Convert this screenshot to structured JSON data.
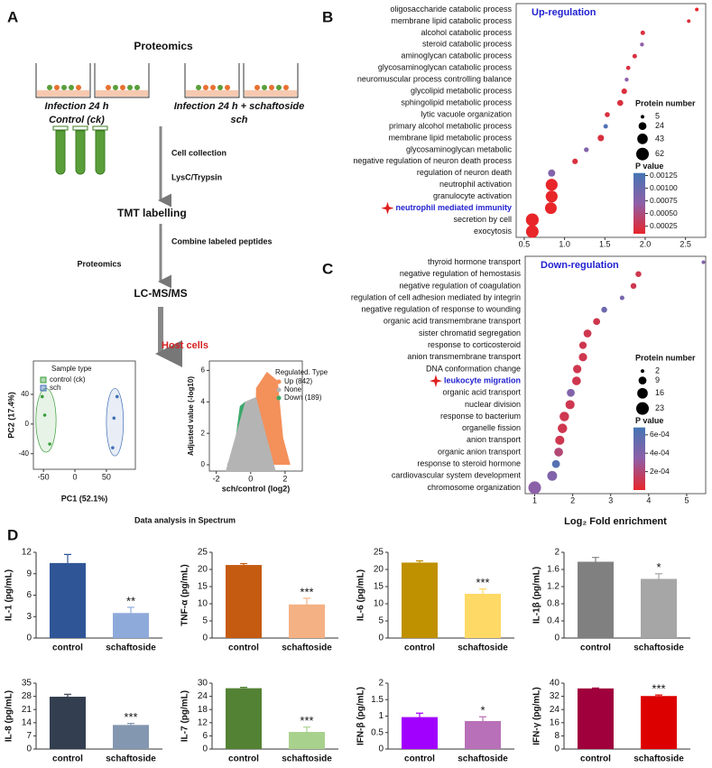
{
  "panel_labels": [
    "A",
    "B",
    "C",
    "D"
  ],
  "diagram": {
    "heading": "Proteomics",
    "groups": [
      {
        "line1": "Infection 24  h",
        "line2": "Control (ck)"
      },
      {
        "line1": "Infection 24  h + schaftoside",
        "line2": "sch"
      }
    ],
    "steps": [
      "Cell collection",
      "LysC/Trypsin",
      "TMT labelling",
      "Combine labeled peptides",
      "Proteomics",
      "LC-MS/MS",
      "Host cells",
      "Data analysis in Spectrum"
    ]
  },
  "chart_data": [
    {
      "type": "scatter",
      "xlabel": "PC1 (52.1%)",
      "ylabel": "PC2 (17.4%)",
      "legend_title": "Sample type",
      "series": [
        {
          "name": "control (ck)",
          "color": "#3a9d3a",
          "x": [
            -52,
            -48,
            -40
          ],
          "values": [
            37,
            12,
            -27
          ]
        },
        {
          "name": "sch",
          "color": "#3f6fb5",
          "x": [
            67,
            62,
            60
          ],
          "values": [
            37,
            8,
            -32
          ]
        }
      ],
      "xlim": [
        -66,
        96
      ],
      "ylim": [
        -61,
        85
      ],
      "xticks": [
        -50,
        0,
        50
      ],
      "yticks": [
        -40,
        0,
        40
      ]
    },
    {
      "type": "volcano",
      "xlabel": "sch/control (log2)",
      "ylabel": "Adjusted value (-log10)",
      "legend_title": "Regulated. Type",
      "series": [
        {
          "name": "Up (842)",
          "color": "#f4905a"
        },
        {
          "name": "None",
          "color": "#b4b4b4"
        },
        {
          "name": "Down (189)",
          "color": "#3aa86b"
        }
      ],
      "xlim": [
        -2.4,
        3.0
      ],
      "ylim": [
        -0.4,
        6.6
      ],
      "xticks": [
        -2,
        0,
        2
      ],
      "yticks": [
        0,
        2,
        4,
        6
      ]
    },
    {
      "type": "dot",
      "title": "Up-regulation",
      "highlight": 17,
      "categories": [
        "oligosaccharide catabolic process",
        "membrane lipid catabolic process",
        "alcohol catabolic process",
        "steroid catabolic process",
        "aminoglycan catabolic process",
        "glycosaminoglycan catabolic process",
        "neuromuscular process controlling balance",
        "glycolipid metabolic process",
        "sphingolipid metabolic process",
        "lytic vacuole organization",
        "primary alcohol metabolic process",
        "membrane lipid metabolic process",
        "glycosaminoglycan metabolic",
        "negative regulation of neuron death process",
        "regulation of neuron death",
        "neutrophil activation",
        "granulocyte activation",
        "neutrophil mediated immunity",
        "secretion by cell",
        "exocytosis"
      ],
      "values": [
        2.64,
        2.54,
        1.97,
        1.96,
        1.87,
        1.79,
        1.77,
        1.74,
        1.69,
        1.53,
        1.51,
        1.45,
        1.27,
        1.13,
        0.84,
        0.84,
        0.84,
        0.83,
        0.6,
        0.6
      ],
      "sizes": [
        5,
        5,
        8,
        6,
        8,
        7,
        6,
        12,
        14,
        10,
        8,
        16,
        9,
        12,
        20,
        55,
        55,
        54,
        64,
        62
      ],
      "pvalues": [
        0.0001,
        0.0002,
        0.0002,
        0.0007,
        0.0002,
        0.0002,
        0.0007,
        0.0002,
        0.0002,
        0.0002,
        0.0012,
        0.0002,
        0.0008,
        0.0002,
        0.0008,
        0.0001,
        0.0001,
        0.0001,
        0.0001,
        0.0001
      ],
      "xlim": [
        0.4,
        2.75
      ],
      "xticks": [
        0.5,
        {
          "value": 1,
          "label": "1.0"
        },
        1.5,
        {
          "value": 2,
          "label": "2.0"
        },
        2.5
      ],
      "size_title": "Protein number",
      "size_ticks": [
        5,
        24,
        43,
        62
      ],
      "color_title": "P value",
      "clim": [
        0.0001,
        0.0013
      ],
      "cticks": [
        0.00125,
        {
          "value": 0.001,
          "label": "0.00100"
        },
        0.00075,
        {
          "value": 0.0005,
          "label": "0.00050"
        },
        0.00025
      ]
    },
    {
      "type": "dot",
      "title": "Down-regulation",
      "highlight": 10,
      "xlabel": "Log₂ Fold enrichment",
      "categories": [
        "thyroid hormone transport",
        "negative regulation of hemostasis",
        "negative regulation of coagulation",
        "regulation of cell adhesion mediated by integrin",
        "negative regulation of response to wounding",
        "organic acid transmembrane transport",
        "sister chromatid segregation",
        "response to corticosteroid",
        "anion transmembrane transport",
        "DNA conformation change",
        "leukocyte migration",
        "organic acid transport",
        "nuclear division",
        "response to bacterium",
        "organelle fission",
        "anion transport",
        "organic anion transport",
        "response to steroid hormone",
        "cardiovascular system development",
        "chromosome organization"
      ],
      "values": [
        5.44,
        3.73,
        3.6,
        3.3,
        2.83,
        2.63,
        2.39,
        2.27,
        2.27,
        2.12,
        2.1,
        1.95,
        1.93,
        1.78,
        1.73,
        1.66,
        1.63,
        1.56,
        1.46,
        1.0
      ],
      "sizes": [
        2,
        5,
        5,
        3,
        5,
        7,
        9,
        8,
        10,
        10,
        11,
        9,
        12,
        13,
        13,
        12,
        11,
        9,
        14,
        23
      ],
      "pvalues": [
        0.0004,
        0.0001,
        0.0001,
        0.00045,
        0.0005,
        0.0001,
        0.0001,
        0.0001,
        0.0001,
        0.0001,
        0.0001,
        0.0004,
        0.0001,
        0.0001,
        0.0001,
        0.0001,
        0.0002,
        0.0006,
        0.0004,
        0.00035
      ],
      "xlim": [
        0.75,
        5.5
      ],
      "xticks": [
        1,
        2,
        3,
        4,
        5
      ],
      "size_title": "Protein number",
      "size_ticks": [
        2,
        9,
        16,
        23
      ],
      "color_title": "P value",
      "clim": [
        0,
        0.00068
      ],
      "cticks": [
        {
          "value": 0.0006,
          "label": "6e-04"
        },
        {
          "value": 0.0004,
          "label": "4e-04"
        },
        {
          "value": 0.0002,
          "label": "2e-04"
        }
      ]
    },
    {
      "type": "bar",
      "ylabel": "IL-1 (pg/mL)",
      "categories": [
        "control",
        "schaftoside"
      ],
      "values": [
        10.5,
        3.5
      ],
      "errors": [
        1.2,
        0.8
      ],
      "colors": [
        "#2f5597",
        "#8eaadb"
      ],
      "significance": "**",
      "ylim": [
        0,
        12
      ],
      "yticks": [
        0,
        3,
        6,
        9,
        12
      ]
    },
    {
      "type": "bar",
      "ylabel": "TNF-α (pg/mL)",
      "categories": [
        "control",
        "schaftoside"
      ],
      "values": [
        21.3,
        9.8
      ],
      "errors": [
        0.4,
        1.8
      ],
      "colors": [
        "#c55a11",
        "#f4b183"
      ],
      "significance": "***",
      "ylim": [
        0,
        25
      ],
      "yticks": [
        0,
        5,
        10,
        15,
        20,
        25
      ]
    },
    {
      "type": "bar",
      "ylabel": "IL-6 (pg/mL)",
      "categories": [
        "control",
        "schaftoside"
      ],
      "values": [
        22,
        12.9
      ],
      "errors": [
        0.5,
        1.4
      ],
      "colors": [
        "#bf9000",
        "#ffd966"
      ],
      "significance": "***",
      "ylim": [
        0,
        25
      ],
      "yticks": [
        0,
        5,
        10,
        15,
        20,
        25
      ]
    },
    {
      "type": "bar",
      "ylabel": "IL-1β (pg/mL)",
      "categories": [
        "control",
        "schaftoside"
      ],
      "values": [
        1.78,
        1.38
      ],
      "errors": [
        0.1,
        0.12
      ],
      "colors": [
        "#808080",
        "#a6a6a6"
      ],
      "significance": "*",
      "ylim": [
        0,
        2
      ],
      "yticks": [
        0,
        0.4,
        0.8,
        1.2,
        1.6,
        2
      ]
    },
    {
      "type": "bar",
      "ylabel": "IL-8 (pg/mL)",
      "categories": [
        "control",
        "schaftoside"
      ],
      "values": [
        27.8,
        12.8
      ],
      "errors": [
        1.3,
        0.8
      ],
      "colors": [
        "#333f50",
        "#8497b0"
      ],
      "significance": "***",
      "ylim": [
        0,
        35
      ],
      "yticks": [
        0,
        7,
        14,
        21,
        28,
        35
      ]
    },
    {
      "type": "bar",
      "ylabel": "IL-7 (pg/mL)",
      "categories": [
        "control",
        "schaftoside"
      ],
      "values": [
        27.7,
        7.8
      ],
      "errors": [
        0.4,
        2.2
      ],
      "colors": [
        "#548235",
        "#a9d18e"
      ],
      "significance": "***",
      "ylim": [
        0,
        30
      ],
      "yticks": [
        0,
        6,
        12,
        18,
        24,
        30
      ]
    },
    {
      "type": "bar",
      "ylabel": "IFN-β (pg/mL)",
      "categories": [
        "control",
        "schaftoside"
      ],
      "values": [
        0.97,
        0.85
      ],
      "errors": [
        0.12,
        0.13
      ],
      "colors": [
        "#a100ff",
        "#b870b8"
      ],
      "significance": "*",
      "ylim": [
        0,
        2
      ],
      "yticks": [
        0,
        0.5,
        1,
        1.5,
        2
      ]
    },
    {
      "type": "bar",
      "ylabel": "IFN-γ (pg/mL)",
      "categories": [
        "control",
        "schaftoside"
      ],
      "values": [
        36.8,
        32.2
      ],
      "errors": [
        0.3,
        0.6
      ],
      "colors": [
        "#a0003c",
        "#dd0000"
      ],
      "significance": "***",
      "ylim": [
        0,
        40
      ],
      "yticks": [
        0,
        8,
        16,
        24,
        32,
        40
      ]
    }
  ]
}
